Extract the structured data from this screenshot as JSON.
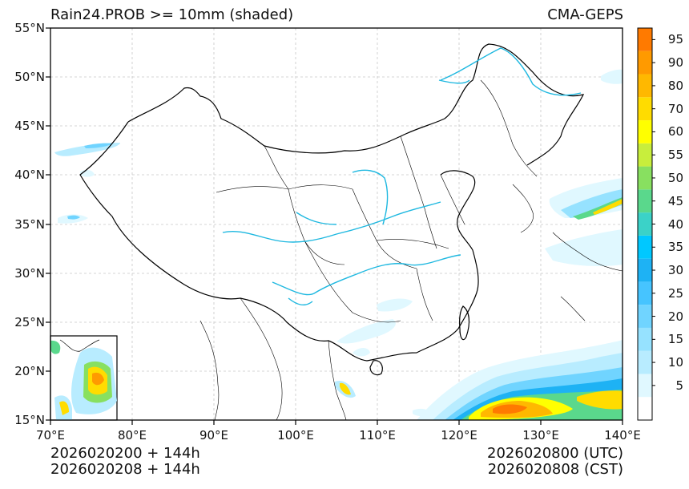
{
  "title_left": "Rain24.PROB >= 10mm (shaded)",
  "title_right": "CMA-GEPS",
  "lat_labels": [
    "55°N",
    "50°N",
    "45°N",
    "40°N",
    "35°N",
    "30°N",
    "25°N",
    "20°N",
    "15°N"
  ],
  "lon_labels": [
    "70°E",
    "80°E",
    "90°E",
    "100°E",
    "110°E",
    "120°E",
    "130°E",
    "140°E"
  ],
  "colorbar": {
    "labels": [
      "5",
      "10",
      "15",
      "20",
      "25",
      "30",
      "35",
      "40",
      "45",
      "50",
      "55",
      "60",
      "70",
      "80",
      "90",
      "95"
    ],
    "colors": [
      "#ffffff",
      "#e0f8ff",
      "#b8ecff",
      "#96e2ff",
      "#70d4ff",
      "#46c4ff",
      "#1eb2f4",
      "#00c8ff",
      "#3bd2c8",
      "#5ad88c",
      "#88e060",
      "#c8ee3c",
      "#ffff00",
      "#ffdc00",
      "#ffb800",
      "#ff9a00",
      "#ff7a00"
    ]
  },
  "footer": {
    "init_utc": "2026020200 + 144h",
    "init_cst": "2026020208 + 144h",
    "valid_utc": "2026020800 (UTC)",
    "valid_cst": "2026020808 (CST)"
  }
}
